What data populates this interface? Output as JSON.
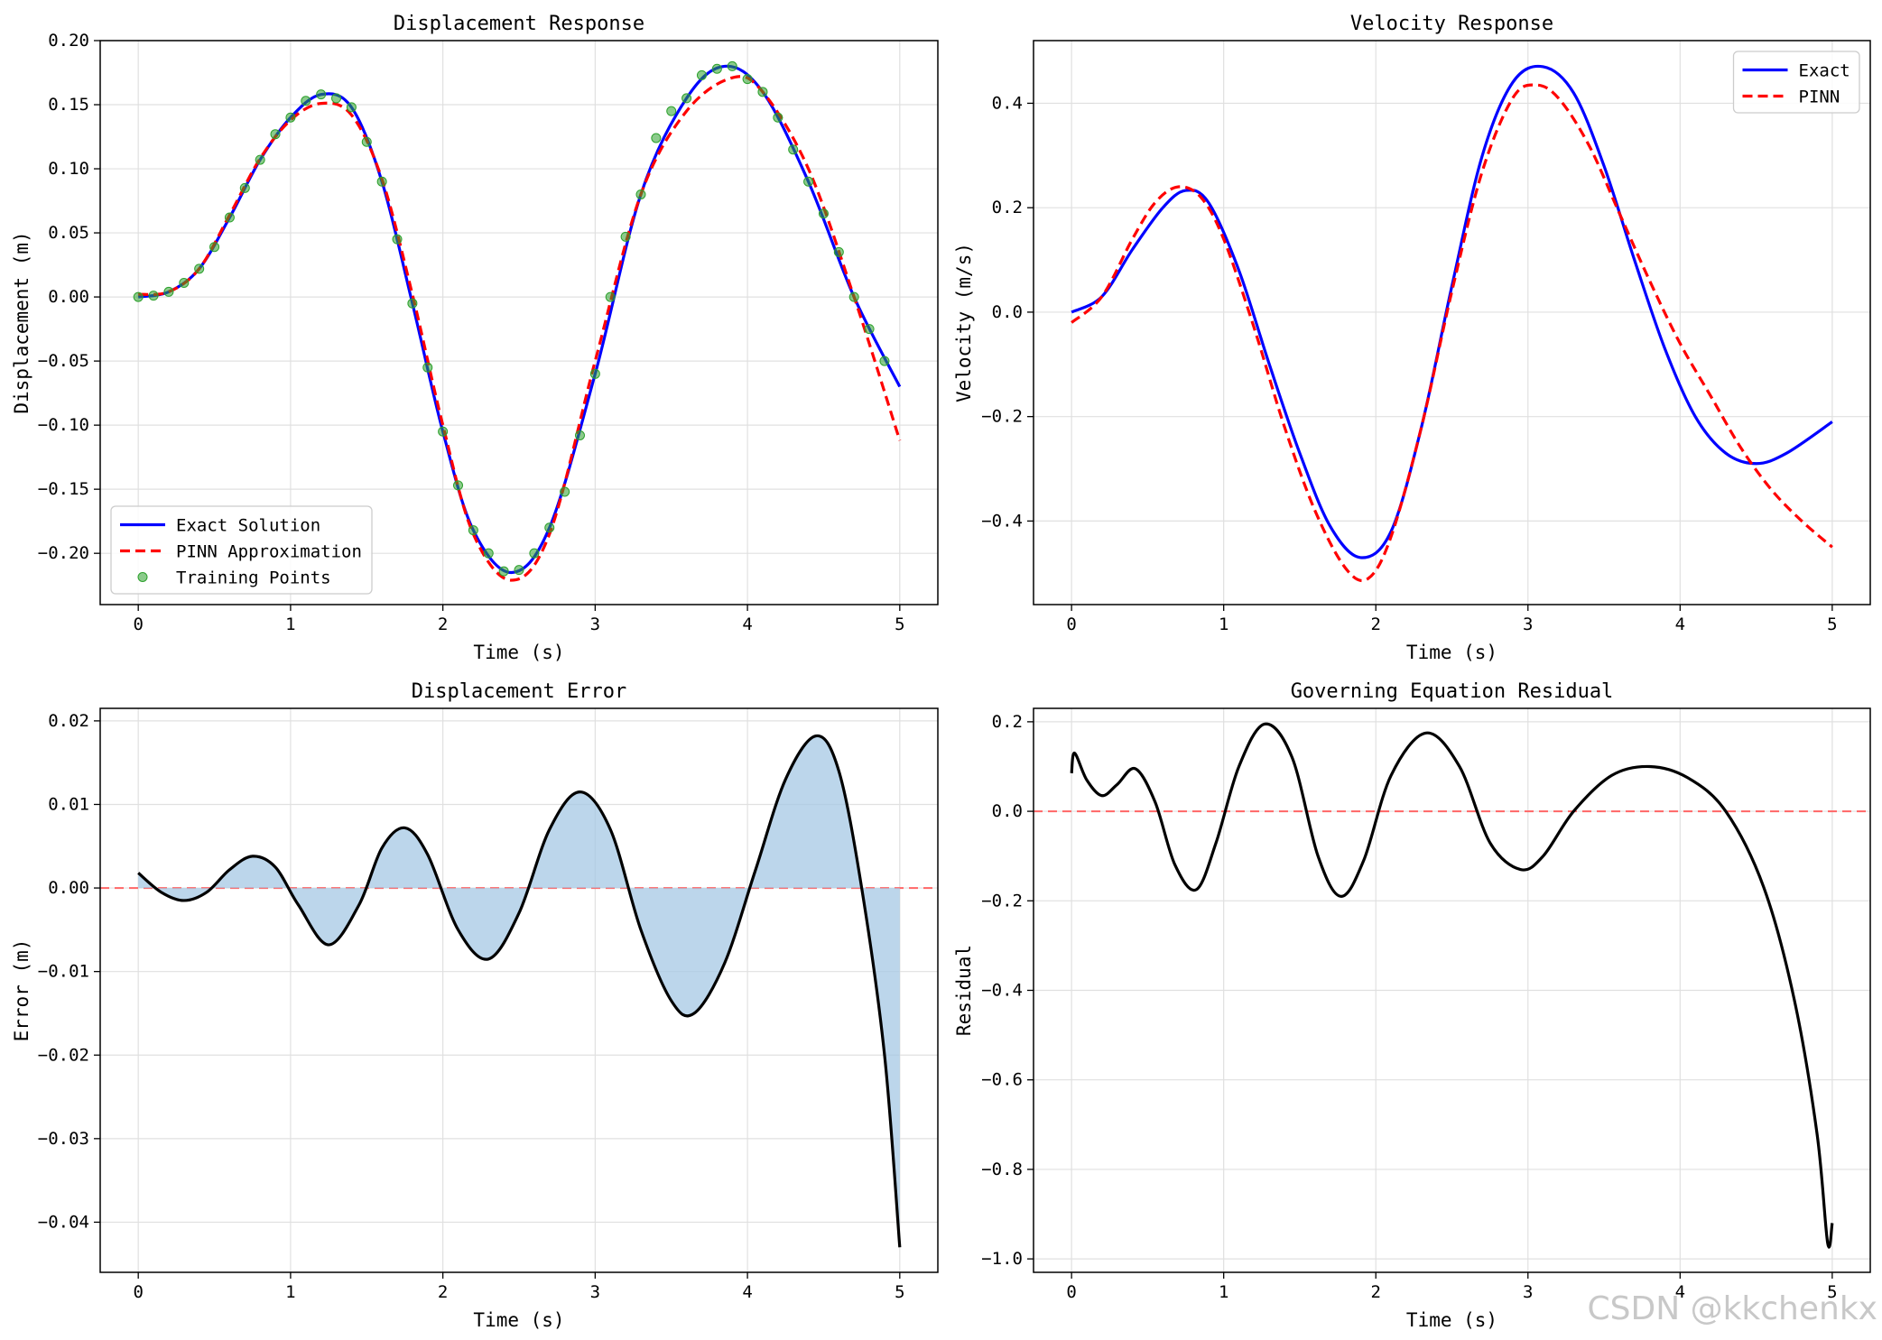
{
  "watermark": "CSDN @kkchenkx",
  "colors": {
    "exact": "#0000ff",
    "pinn": "#ff0000",
    "training": "#2ca02c",
    "error_line": "#000000",
    "error_fill": "#a6c8e4",
    "zero_line": "#ff6666",
    "grid": "#e0e0e0"
  },
  "chart_data": [
    {
      "id": "displacement",
      "type": "line",
      "title": "Displacement Response",
      "xlabel": "Time (s)",
      "ylabel": "Displacement (m)",
      "xlim": [
        -0.25,
        5.25
      ],
      "ylim": [
        -0.24,
        0.2
      ],
      "xticks": [
        0,
        1,
        2,
        3,
        4,
        5
      ],
      "xtick_labels": [
        "0",
        "1",
        "2",
        "3",
        "4",
        "5"
      ],
      "yticks": [
        0.2,
        0.15,
        0.1,
        0.05,
        0.0,
        -0.05,
        -0.1,
        -0.15,
        -0.2
      ],
      "ytick_labels": [
        "0.20",
        "0.15",
        "0.10",
        "0.05",
        "0.00",
        "−0.05",
        "−0.10",
        "−0.15",
        "−0.20"
      ],
      "grid": true,
      "legend": "lower-left",
      "series": [
        {
          "name": "Exact Solution",
          "style": "solid",
          "color": "#0000ff",
          "x": [
            0,
            0.2,
            0.4,
            0.6,
            0.8,
            1.0,
            1.2,
            1.4,
            1.6,
            1.8,
            2.0,
            2.2,
            2.45,
            2.7,
            3.0,
            3.3,
            3.6,
            3.85,
            4.1,
            4.4,
            4.7,
            5.0
          ],
          "y": [
            0.0,
            0.004,
            0.022,
            0.062,
            0.107,
            0.14,
            0.158,
            0.148,
            0.09,
            -0.005,
            -0.105,
            -0.182,
            -0.215,
            -0.18,
            -0.06,
            0.08,
            0.155,
            0.18,
            0.16,
            0.09,
            0.0,
            -0.07
          ]
        },
        {
          "name": "PINN Approximation",
          "style": "dashed",
          "color": "#ff0000",
          "x": [
            0,
            0.2,
            0.4,
            0.6,
            0.8,
            1.0,
            1.2,
            1.4,
            1.6,
            1.8,
            2.0,
            2.2,
            2.45,
            2.7,
            3.0,
            3.3,
            3.6,
            3.9,
            4.1,
            4.4,
            4.7,
            5.0
          ],
          "y": [
            0.002,
            0.004,
            0.022,
            0.064,
            0.108,
            0.138,
            0.151,
            0.142,
            0.092,
            0.002,
            -0.1,
            -0.185,
            -0.221,
            -0.185,
            -0.05,
            0.08,
            0.145,
            0.171,
            0.16,
            0.1,
            0.0,
            -0.112
          ]
        },
        {
          "name": "Training Points",
          "style": "markers",
          "color": "#2ca02c",
          "x": [
            0,
            0.1,
            0.2,
            0.3,
            0.4,
            0.5,
            0.6,
            0.7,
            0.8,
            0.9,
            1.0,
            1.1,
            1.2,
            1.3,
            1.4,
            1.5,
            1.6,
            1.7,
            1.8,
            1.9,
            2.0,
            2.1,
            2.2,
            2.3,
            2.4,
            2.5,
            2.6,
            2.7,
            2.8,
            2.9,
            3.0,
            3.1,
            3.2,
            3.3,
            3.4,
            3.5,
            3.6,
            3.7,
            3.8,
            3.9,
            4.0,
            4.1,
            4.2,
            4.3,
            4.4,
            4.5,
            4.6,
            4.7,
            4.8,
            4.9
          ],
          "y": [
            0.0,
            0.001,
            0.004,
            0.011,
            0.022,
            0.039,
            0.062,
            0.085,
            0.107,
            0.127,
            0.14,
            0.153,
            0.158,
            0.155,
            0.148,
            0.121,
            0.09,
            0.045,
            -0.005,
            -0.055,
            -0.105,
            -0.147,
            -0.182,
            -0.2,
            -0.214,
            -0.213,
            -0.2,
            -0.18,
            -0.152,
            -0.108,
            -0.06,
            0.0,
            0.047,
            0.08,
            0.124,
            0.145,
            0.155,
            0.173,
            0.178,
            0.18,
            0.17,
            0.16,
            0.14,
            0.115,
            0.09,
            0.065,
            0.035,
            0.0,
            -0.025,
            -0.05
          ]
        }
      ]
    },
    {
      "id": "velocity",
      "type": "line",
      "title": "Velocity Response",
      "xlabel": "Time (s)",
      "ylabel": "Velocity (m/s)",
      "xlim": [
        -0.25,
        5.25
      ],
      "ylim": [
        -0.56,
        0.52
      ],
      "xticks": [
        0,
        1,
        2,
        3,
        4,
        5
      ],
      "xtick_labels": [
        "0",
        "1",
        "2",
        "3",
        "4",
        "5"
      ],
      "yticks": [
        0.4,
        0.2,
        0.0,
        -0.2,
        -0.4
      ],
      "ytick_labels": [
        "0.4",
        "0.2",
        "0.0",
        "−0.2",
        "−0.4"
      ],
      "grid": true,
      "legend": "upper-right",
      "series": [
        {
          "name": "Exact",
          "style": "solid",
          "color": "#0000ff",
          "x": [
            0,
            0.2,
            0.4,
            0.6,
            0.75,
            0.9,
            1.1,
            1.3,
            1.5,
            1.7,
            1.9,
            2.1,
            2.3,
            2.5,
            2.7,
            2.9,
            3.1,
            3.3,
            3.5,
            3.7,
            3.9,
            4.1,
            4.3,
            4.5,
            4.7,
            5.0
          ],
          "y": [
            0.0,
            0.03,
            0.12,
            0.2,
            0.233,
            0.21,
            0.08,
            -0.1,
            -0.27,
            -0.41,
            -0.47,
            -0.42,
            -0.22,
            0.05,
            0.3,
            0.44,
            0.47,
            0.42,
            0.28,
            0.1,
            -0.07,
            -0.2,
            -0.27,
            -0.29,
            -0.27,
            -0.21
          ]
        },
        {
          "name": "PINN",
          "style": "dashed",
          "color": "#ff0000",
          "x": [
            0,
            0.2,
            0.4,
            0.55,
            0.7,
            0.85,
            1.0,
            1.2,
            1.4,
            1.6,
            1.8,
            1.95,
            2.1,
            2.3,
            2.5,
            2.7,
            2.9,
            3.05,
            3.2,
            3.4,
            3.6,
            3.8,
            4.0,
            4.2,
            4.4,
            4.6,
            4.8,
            5.0
          ],
          "y": [
            -0.02,
            0.03,
            0.14,
            0.21,
            0.24,
            0.22,
            0.14,
            -0.03,
            -0.22,
            -0.38,
            -0.49,
            -0.51,
            -0.43,
            -0.22,
            0.04,
            0.27,
            0.41,
            0.435,
            0.41,
            0.32,
            0.19,
            0.06,
            -0.06,
            -0.16,
            -0.26,
            -0.34,
            -0.4,
            -0.45
          ]
        }
      ]
    },
    {
      "id": "error",
      "type": "area",
      "title": "Displacement Error",
      "xlabel": "Time (s)",
      "ylabel": "Error (m)",
      "xlim": [
        -0.25,
        5.25
      ],
      "ylim": [
        -0.046,
        0.0215
      ],
      "xticks": [
        0,
        1,
        2,
        3,
        4,
        5
      ],
      "xtick_labels": [
        "0",
        "1",
        "2",
        "3",
        "4",
        "5"
      ],
      "yticks": [
        0.02,
        0.01,
        0.0,
        -0.01,
        -0.02,
        -0.03,
        -0.04
      ],
      "ytick_labels": [
        "0.02",
        "0.01",
        "0.00",
        "−0.01",
        "−0.02",
        "−0.03",
        "−0.04"
      ],
      "grid": true,
      "zero_line": 0,
      "series": [
        {
          "name": "",
          "style": "solid",
          "color": "#000000",
          "fill_to_zero": true,
          "x": [
            0,
            0.15,
            0.3,
            0.45,
            0.6,
            0.75,
            0.9,
            1.05,
            1.25,
            1.45,
            1.6,
            1.75,
            1.9,
            2.1,
            2.3,
            2.5,
            2.7,
            2.9,
            3.1,
            3.3,
            3.5,
            3.65,
            3.85,
            4.05,
            4.25,
            4.45,
            4.6,
            4.75,
            4.9,
            5.0
          ],
          "y": [
            0.0018,
            -0.0005,
            -0.0015,
            -0.0005,
            0.0022,
            0.0038,
            0.0025,
            -0.002,
            -0.0068,
            -0.002,
            0.0048,
            0.0072,
            0.004,
            -0.005,
            -0.0085,
            -0.003,
            0.007,
            0.0115,
            0.007,
            -0.005,
            -0.0135,
            -0.015,
            -0.009,
            0.002,
            0.013,
            0.0182,
            0.014,
            0.0,
            -0.02,
            -0.043
          ]
        }
      ]
    },
    {
      "id": "residual",
      "type": "line",
      "title": "Governing Equation Residual",
      "xlabel": "Time (s)",
      "ylabel": "Residual",
      "xlim": [
        -0.25,
        5.25
      ],
      "ylim": [
        -1.03,
        0.23
      ],
      "xticks": [
        0,
        1,
        2,
        3,
        4,
        5
      ],
      "xtick_labels": [
        "0",
        "1",
        "2",
        "3",
        "4",
        "5"
      ],
      "yticks": [
        0.2,
        0.0,
        -0.2,
        -0.4,
        -0.6,
        -0.8,
        -1.0
      ],
      "ytick_labels": [
        "0.2",
        "0.0",
        "−0.2",
        "−0.4",
        "−0.6",
        "−0.8",
        "−1.0"
      ],
      "grid": true,
      "zero_line": 0,
      "series": [
        {
          "name": "",
          "style": "solid",
          "color": "#000000",
          "x": [
            0,
            0.02,
            0.1,
            0.2,
            0.3,
            0.42,
            0.55,
            0.68,
            0.82,
            0.95,
            1.1,
            1.27,
            1.45,
            1.62,
            1.77,
            1.92,
            2.1,
            2.33,
            2.55,
            2.75,
            2.95,
            3.1,
            3.3,
            3.55,
            3.8,
            4.05,
            4.3,
            4.55,
            4.75,
            4.9,
            4.97,
            5.0
          ],
          "y": [
            0.085,
            0.13,
            0.07,
            0.035,
            0.06,
            0.095,
            0.02,
            -0.12,
            -0.175,
            -0.07,
            0.1,
            0.195,
            0.12,
            -0.1,
            -0.19,
            -0.11,
            0.08,
            0.175,
            0.1,
            -0.07,
            -0.13,
            -0.1,
            0.0,
            0.08,
            0.1,
            0.075,
            0.0,
            -0.17,
            -0.42,
            -0.72,
            -0.965,
            -0.92
          ]
        }
      ]
    }
  ]
}
